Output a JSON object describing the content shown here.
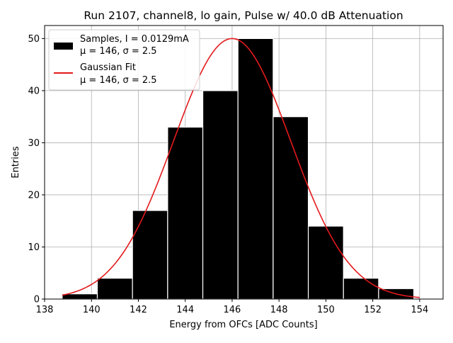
{
  "chart_data": {
    "type": "bar",
    "title": "Run 2107, channel8, lo gain, Pulse w/ 40.0 dB Attenuation",
    "xlabel": "Energy from OFCs [ADC Counts]",
    "ylabel": "Entries",
    "xlim": [
      138,
      155
    ],
    "ylim": [
      0,
      52.5
    ],
    "xticks": [
      138,
      140,
      142,
      144,
      146,
      148,
      150,
      152,
      154
    ],
    "yticks": [
      0,
      10,
      20,
      30,
      40,
      50
    ],
    "grid": true,
    "legend_position": "top-left",
    "bin_width": 1.5,
    "bins": [
      {
        "left": 138.75,
        "count": 1
      },
      {
        "left": 140.25,
        "count": 4
      },
      {
        "left": 141.75,
        "count": 17
      },
      {
        "left": 143.25,
        "count": 33
      },
      {
        "left": 144.75,
        "count": 40
      },
      {
        "left": 146.25,
        "count": 50
      },
      {
        "left": 147.75,
        "count": 35
      },
      {
        "left": 149.25,
        "count": 14
      },
      {
        "left": 150.75,
        "count": 4
      },
      {
        "left": 152.25,
        "count": 2
      }
    ],
    "fit": {
      "type": "gaussian",
      "mu": 146,
      "sigma": 2.5,
      "amplitude": 50,
      "x_range": [
        138.75,
        154
      ]
    },
    "series": [
      {
        "name": "Samples, I = 0.0129mA",
        "stats": "μ = 146, σ = 2.5",
        "color": "#000000",
        "kind": "histogram"
      },
      {
        "name": "Gaussian Fit",
        "stats": "μ = 146, σ = 2.5",
        "color": "#e41a1c",
        "kind": "line"
      }
    ]
  }
}
